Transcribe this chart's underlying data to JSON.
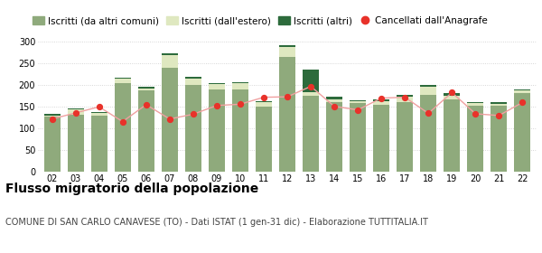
{
  "years": [
    "02",
    "03",
    "04",
    "05",
    "06",
    "07",
    "08",
    "09",
    "10",
    "11",
    "12",
    "13",
    "14",
    "15",
    "16",
    "17",
    "18",
    "19",
    "20",
    "21",
    "22"
  ],
  "iscritti_comuni": [
    128,
    132,
    130,
    205,
    188,
    240,
    200,
    190,
    190,
    150,
    265,
    175,
    160,
    158,
    155,
    160,
    178,
    168,
    153,
    153,
    182
  ],
  "iscritti_estero": [
    2,
    12,
    5,
    10,
    5,
    28,
    15,
    12,
    14,
    10,
    22,
    8,
    8,
    5,
    7,
    13,
    18,
    8,
    5,
    4,
    5
  ],
  "iscritti_altri": [
    3,
    2,
    2,
    2,
    3,
    5,
    3,
    2,
    3,
    2,
    5,
    52,
    5,
    3,
    5,
    5,
    5,
    5,
    3,
    3,
    3
  ],
  "cancellati": [
    122,
    136,
    150,
    116,
    155,
    122,
    133,
    153,
    156,
    172,
    173,
    197,
    151,
    143,
    170,
    172,
    135,
    183,
    134,
    130,
    160
  ],
  "color_comuni": "#8faa7c",
  "color_estero": "#dfe8c0",
  "color_altri": "#2d6b3c",
  "color_cancellati": "#e8322a",
  "color_line": "#f0a0a0",
  "bg_color": "#ffffff",
  "grid_color": "#cccccc",
  "ylim": [
    0,
    320
  ],
  "yticks": [
    0,
    50,
    100,
    150,
    200,
    250,
    300
  ],
  "title": "Flusso migratorio della popolazione",
  "subtitle": "COMUNE DI SAN CARLO CANAVESE (TO) - Dati ISTAT (1 gen-31 dic) - Elaborazione TUTTITALIA.IT",
  "legend_labels": [
    "Iscritti (da altri comuni)",
    "Iscritti (dall'estero)",
    "Iscritti (altri)",
    "Cancellati dall'Anagrafe"
  ],
  "title_fontsize": 10,
  "subtitle_fontsize": 7,
  "legend_fontsize": 7.5
}
